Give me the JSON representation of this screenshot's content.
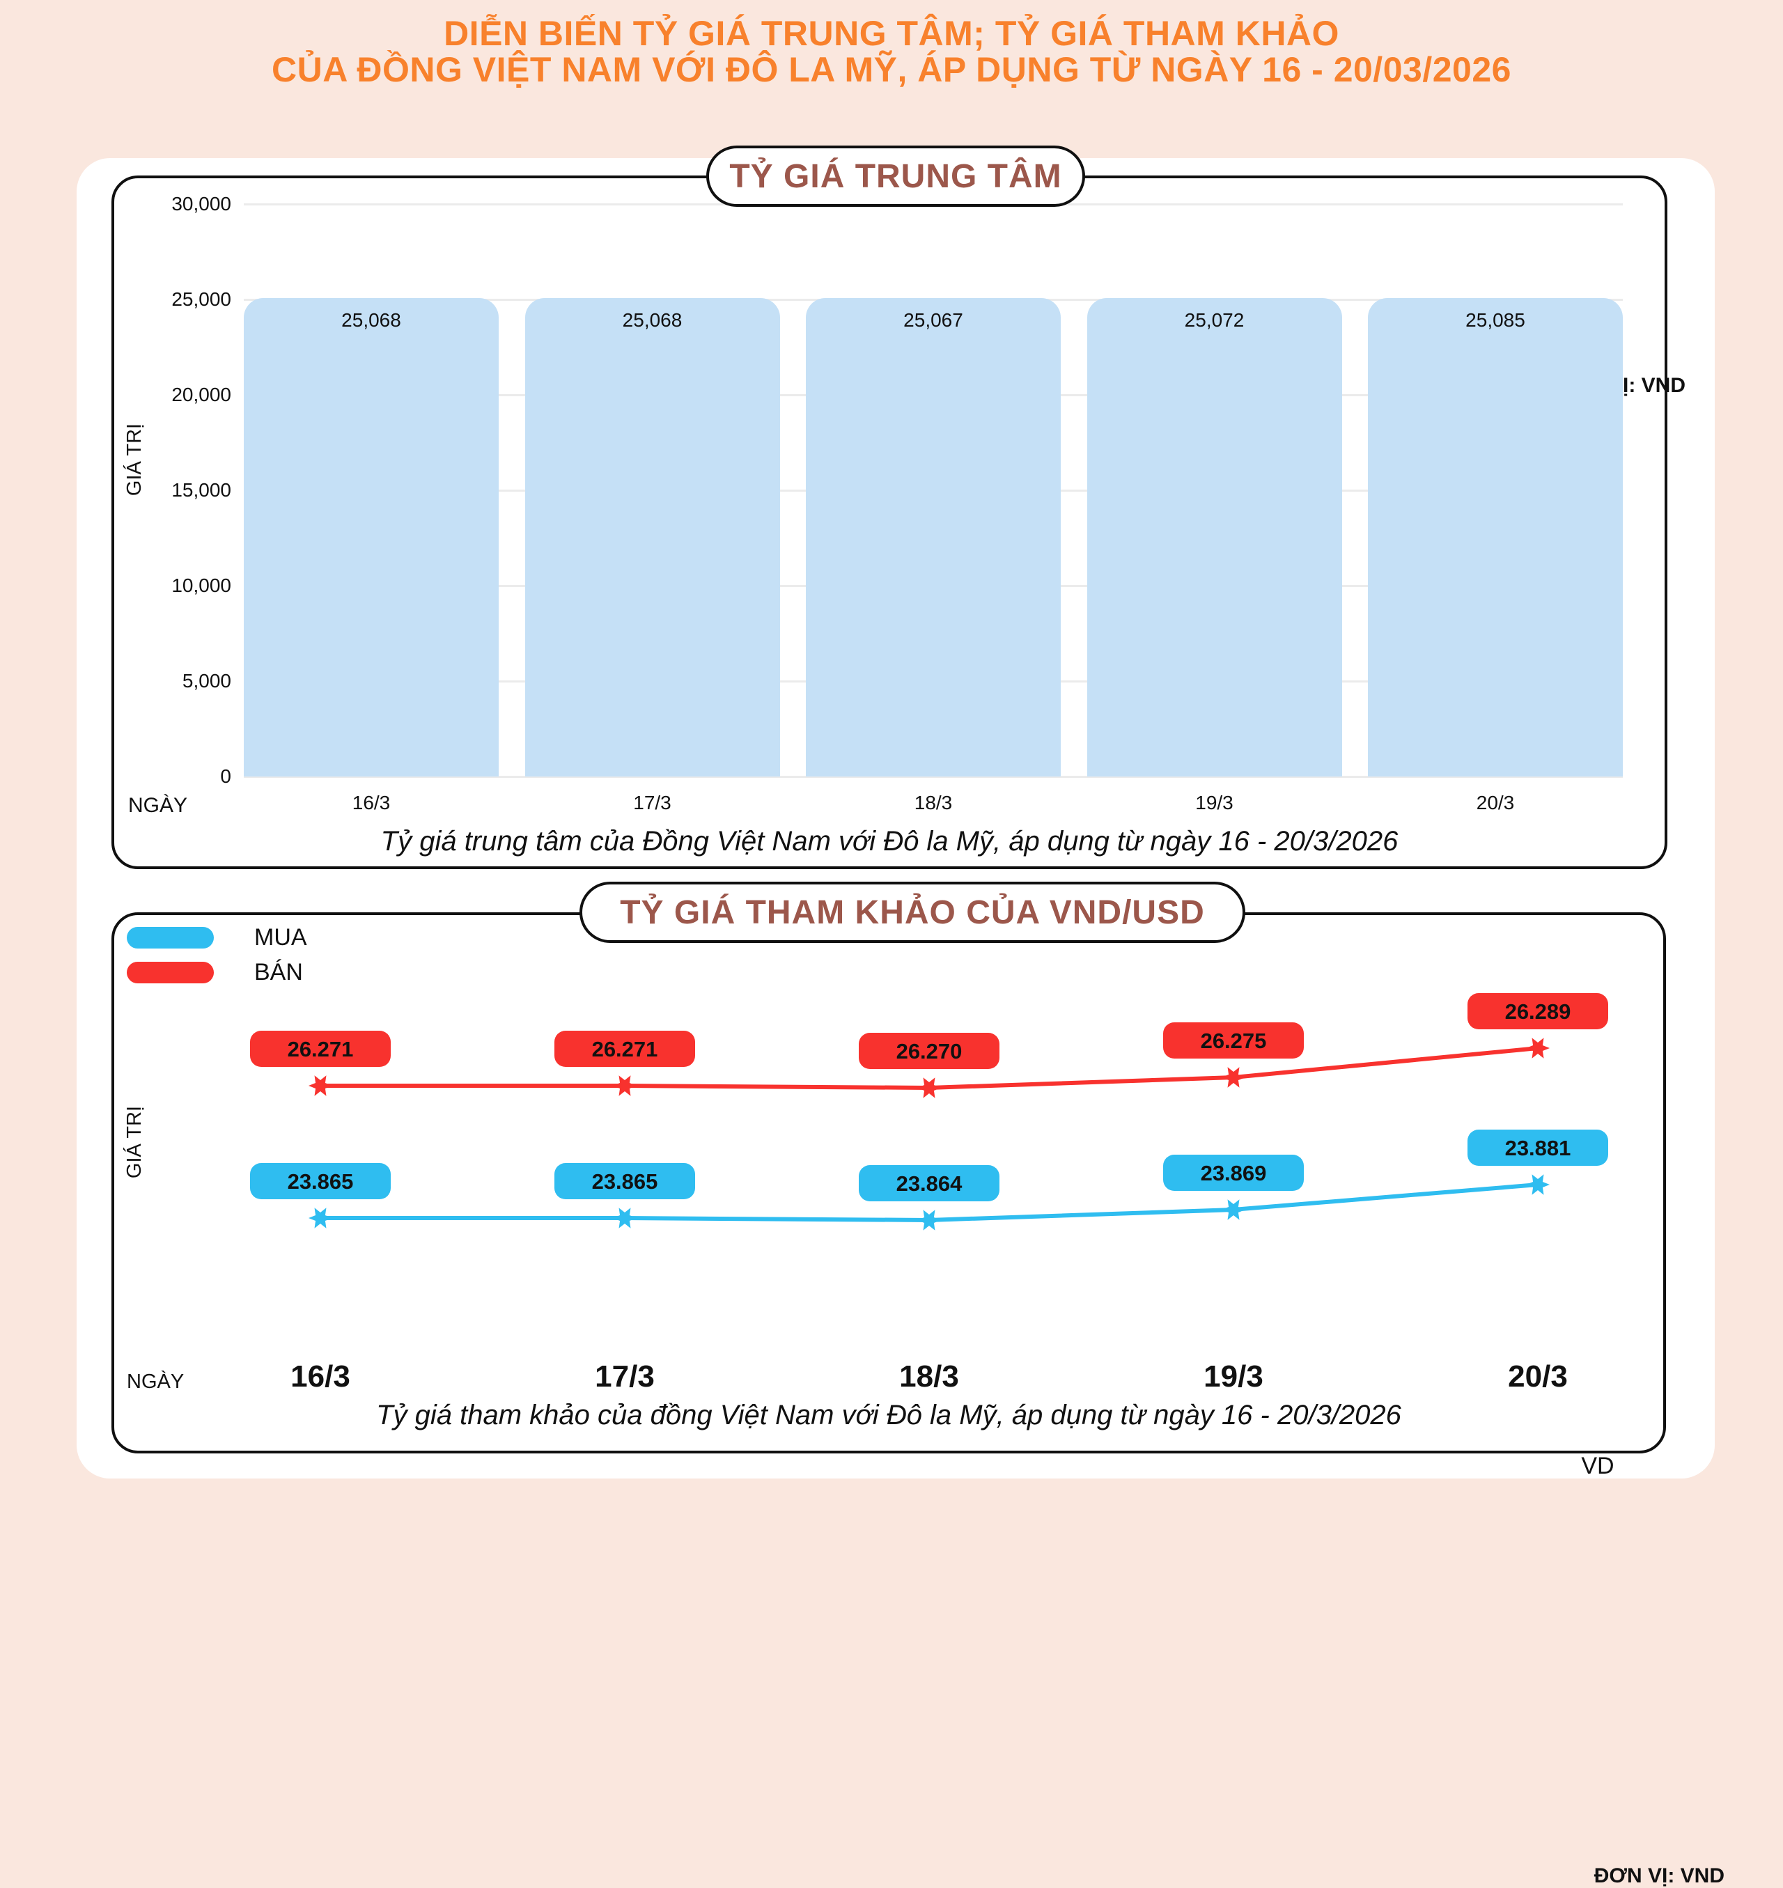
{
  "title": {
    "line1": "DIỄN BIẾN TỶ GIÁ TRUNG TÂM; TỶ GIÁ THAM KHẢO",
    "line2": "CỦA ĐỒNG VIỆT NAM VỚI ĐÔ LA MỸ, ÁP DỤNG TỪ NGÀY 16 - 20/03/2026"
  },
  "footer": {
    "credit": "VD"
  },
  "colors": {
    "background": "#FAE7DE",
    "title_orange": "#F8812C",
    "badge_text_brown": "#9C574B",
    "bar_blue": "#C5E0F6",
    "buy_cyan": "#2FBDF0",
    "sell_red": "#F8322E",
    "gridline_gray": "#EBEBEB"
  },
  "chart_data": [
    {
      "type": "bar",
      "title": "TỶ GIÁ TRUNG TÂM",
      "unit_label": "ĐƠN VỊ: VND",
      "xlabel": "NGÀY",
      "ylabel": "GIÁ TRỊ",
      "categories": [
        "16/3",
        "17/3",
        "18/3",
        "19/3",
        "20/3"
      ],
      "values": [
        25068,
        25068,
        25067,
        25072,
        25085
      ],
      "value_labels": [
        "25,068",
        "25,068",
        "25,067",
        "25,072",
        "25,085"
      ],
      "ylim": [
        0,
        30000
      ],
      "yticks": [
        0,
        5000,
        10000,
        15000,
        20000,
        25000,
        30000
      ],
      "ytick_labels": [
        "0",
        "5,000",
        "10,000",
        "15,000",
        "20,000",
        "25,000",
        "30,000"
      ],
      "grid": true,
      "legend_position": "none",
      "bar_color": "#C5E0F6",
      "caption": "Tỷ giá trung tâm của Đồng Việt Nam với Đô la Mỹ, áp dụng từ ngày 16 - 20/3/2026"
    },
    {
      "type": "line",
      "title": "TỶ GIÁ THAM KHẢO CỦA VND/USD",
      "unit_label": "ĐƠN VỊ: VND",
      "xlabel": "NGÀY",
      "ylabel": "GIÁ TRỊ",
      "categories": [
        "16/3",
        "17/3",
        "18/3",
        "19/3",
        "20/3"
      ],
      "grid": false,
      "legend_position": "top-left",
      "series": [
        {
          "name": "MUA",
          "color": "#2FBDF0",
          "values": [
            23865,
            23865,
            23864,
            23869,
            23881
          ],
          "value_labels": [
            "23.865",
            "23.865",
            "23.864",
            "23.869",
            "23.881"
          ]
        },
        {
          "name": "BÁN",
          "color": "#F8322E",
          "values": [
            26271,
            26271,
            26270,
            26275,
            26289
          ],
          "value_labels": [
            "26.271",
            "26.271",
            "26.270",
            "26.275",
            "26.289"
          ]
        }
      ],
      "caption": "Tỷ giá tham khảo của đồng Việt Nam với Đô la Mỹ, áp dụng từ ngày 16 - 20/3/2026"
    }
  ]
}
